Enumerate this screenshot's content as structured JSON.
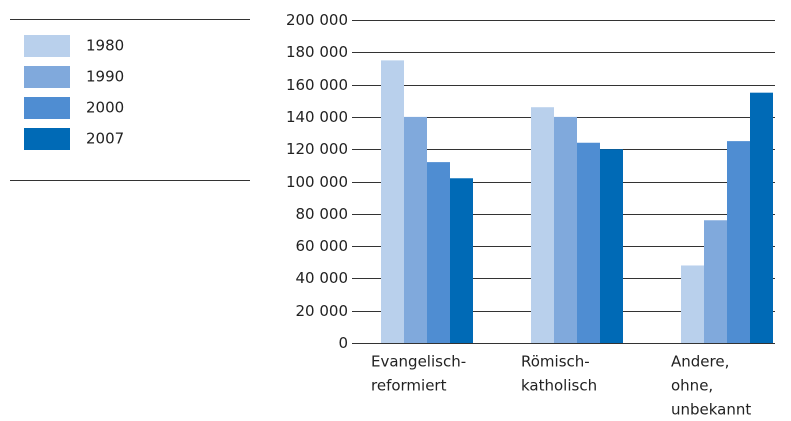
{
  "chart_data": {
    "type": "bar",
    "categories": [
      [
        "Evangelisch-",
        "reformiert"
      ],
      [
        "Römisch-",
        "katholisch"
      ],
      [
        "Andere,",
        "ohne,",
        "unbekannt"
      ]
    ],
    "series": [
      {
        "name": "1980",
        "color": "#b9d0ec",
        "values": [
          175000,
          146000,
          48000
        ]
      },
      {
        "name": "1990",
        "color": "#80a9dc",
        "values": [
          140000,
          140000,
          76000
        ]
      },
      {
        "name": "2000",
        "color": "#4f8dd2",
        "values": [
          112000,
          124000,
          125000
        ]
      },
      {
        "name": "2007",
        "color": "#006ab6",
        "values": [
          102000,
          120000,
          155000
        ]
      }
    ],
    "ylim": [
      0,
      200000
    ],
    "yticks": [
      {
        "value": 0,
        "label": "0"
      },
      {
        "value": 20000,
        "label": "20 000"
      },
      {
        "value": 40000,
        "label": "40 000"
      },
      {
        "value": 60000,
        "label": "60 000"
      },
      {
        "value": 80000,
        "label": "80 000"
      },
      {
        "value": 100000,
        "label": "100 000"
      },
      {
        "value": 120000,
        "label": "120 000"
      },
      {
        "value": 140000,
        "label": "140 000"
      },
      {
        "value": 160000,
        "label": "160 000"
      },
      {
        "value": 180000,
        "label": "180 000"
      },
      {
        "value": 200000,
        "label": "200 000"
      }
    ],
    "grid": true,
    "legend": "left"
  }
}
